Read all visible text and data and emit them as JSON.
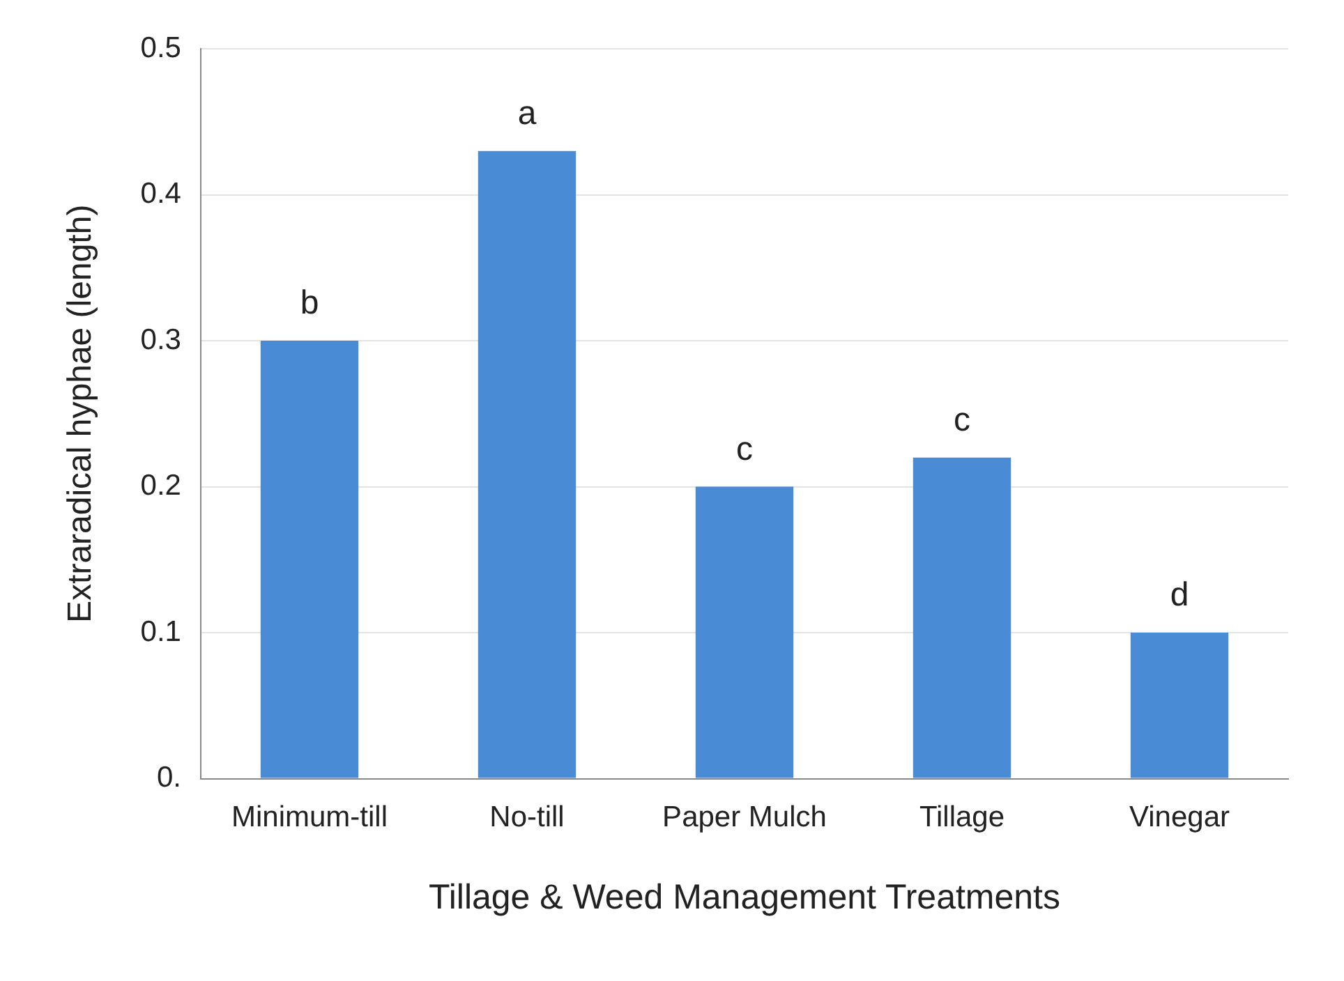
{
  "chart_data": {
    "type": "bar",
    "xlabel": "Tillage & Weed Management Treatments",
    "ylabel": "Extraradical hyphae (length)",
    "categories": [
      "Minimum-till",
      "No-till",
      "Paper Mulch",
      "Tillage",
      "Vinegar"
    ],
    "values": [
      0.3,
      0.43,
      0.2,
      0.22,
      0.1
    ],
    "color": "#4a8bd6",
    "ylim": [
      0,
      0.5
    ],
    "yticks": [
      {
        "value": 0,
        "label": "0."
      },
      0.1,
      0.2,
      0.3,
      0.4,
      0.5
    ],
    "grid": "y",
    "annotations": [
      {
        "text": "b",
        "x": "Minimum-till",
        "y": 0.3
      },
      {
        "text": "a",
        "x": "No-till",
        "y": 0.43
      },
      {
        "text": "c",
        "x": "Paper Mulch",
        "y": 0.2
      },
      {
        "text": "c",
        "x": "Tillage",
        "y": 0.22
      },
      {
        "text": "d",
        "x": "Vinegar",
        "y": 0.1
      }
    ]
  }
}
